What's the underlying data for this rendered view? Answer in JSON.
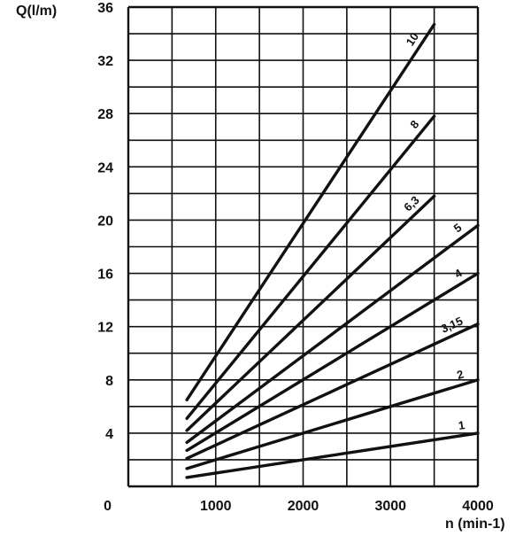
{
  "chart_data": {
    "type": "line",
    "title": "",
    "xlabel": "n (min-1)",
    "ylabel": "Q(l/m)",
    "origin_label": "0",
    "xlim": [
      0,
      4000
    ],
    "ylim": [
      0,
      36
    ],
    "x_ticks": [
      1000,
      2000,
      3000,
      4000
    ],
    "y_ticks": [
      4,
      8,
      12,
      16,
      20,
      24,
      28,
      32,
      36
    ],
    "grid": true,
    "series": [
      {
        "name": "1",
        "x": [
          670,
          4000
        ],
        "y": [
          0.67,
          4.0
        ]
      },
      {
        "name": "2",
        "x": [
          670,
          4000
        ],
        "y": [
          1.34,
          8.0
        ]
      },
      {
        "name": "3,15",
        "x": [
          670,
          4000
        ],
        "y": [
          2.1,
          12.2
        ]
      },
      {
        "name": "4",
        "x": [
          670,
          4000
        ],
        "y": [
          2.7,
          16.0
        ]
      },
      {
        "name": "5",
        "x": [
          670,
          4000
        ],
        "y": [
          3.3,
          19.6
        ]
      },
      {
        "name": "6,3",
        "x": [
          670,
          3500
        ],
        "y": [
          4.2,
          21.8
        ]
      },
      {
        "name": "8",
        "x": [
          670,
          3500
        ],
        "y": [
          5.1,
          27.8
        ]
      },
      {
        "name": "10",
        "x": [
          670,
          3500
        ],
        "y": [
          6.5,
          34.7
        ]
      }
    ]
  }
}
